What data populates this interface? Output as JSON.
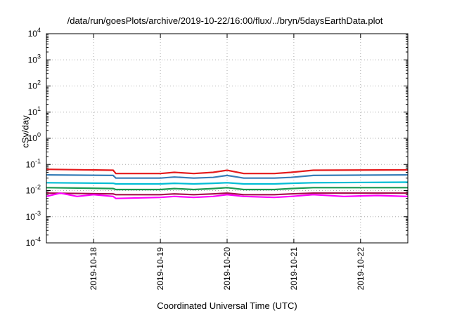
{
  "chart_data": {
    "type": "line",
    "title": "/data/run/goesPlots/archive/2019-10-22/16:00/flux/../bryn/5daysEarthData.plot",
    "xlabel": "Coordinated Universal Time (UTC)",
    "ylabel": "cSv/day",
    "yscale": "log",
    "ylim": [
      0.0001,
      10000
    ],
    "xlim": [
      "2019-10-17T07:00",
      "2019-10-22T17:00"
    ],
    "grid": true,
    "legend": "none",
    "x_ticks": [
      "2019-10-18",
      "2019-10-19",
      "2019-10-20",
      "2019-10-21",
      "2019-10-22"
    ],
    "y_ticks": [
      {
        "base": "10",
        "exp": "-4",
        "value": 0.0001
      },
      {
        "base": "10",
        "exp": "-3",
        "value": 0.001
      },
      {
        "base": "10",
        "exp": "-2",
        "value": 0.01
      },
      {
        "base": "10",
        "exp": "-1",
        "value": 0.1
      },
      {
        "base": "10",
        "exp": "0",
        "value": 1
      },
      {
        "base": "10",
        "exp": "1",
        "value": 10
      },
      {
        "base": "10",
        "exp": "2",
        "value": 100
      },
      {
        "base": "10",
        "exp": "3",
        "value": 1000
      },
      {
        "base": "10",
        "exp": "4",
        "value": 10000
      }
    ],
    "series": [
      {
        "color": "#e41a1c",
        "x": [
          "2019-10-17T07:00",
          "2019-10-18T07:00",
          "2019-10-18T08:00",
          "2019-10-19T00:00",
          "2019-10-19T05:00",
          "2019-10-19T12:00",
          "2019-10-19T19:00",
          "2019-10-20T00:00",
          "2019-10-20T06:00",
          "2019-10-20T17:00",
          "2019-10-20T23:00",
          "2019-10-21T07:00",
          "2019-10-22T17:00"
        ],
        "y": [
          0.065,
          0.06,
          0.045,
          0.045,
          0.05,
          0.045,
          0.05,
          0.06,
          0.045,
          0.045,
          0.05,
          0.06,
          0.062
        ]
      },
      {
        "color": "#377eb8",
        "x": [
          "2019-10-17T07:00",
          "2019-10-18T07:00",
          "2019-10-18T08:00",
          "2019-10-19T00:00",
          "2019-10-19T05:00",
          "2019-10-19T12:00",
          "2019-10-19T19:00",
          "2019-10-20T00:00",
          "2019-10-20T06:00",
          "2019-10-20T17:00",
          "2019-10-20T23:00",
          "2019-10-21T07:00",
          "2019-10-22T17:00"
        ],
        "y": [
          0.04,
          0.038,
          0.03,
          0.03,
          0.033,
          0.03,
          0.032,
          0.038,
          0.03,
          0.03,
          0.032,
          0.038,
          0.04
        ]
      },
      {
        "color": "#1a9850",
        "x": [
          "2019-10-17T07:00",
          "2019-10-18T07:00",
          "2019-10-18T08:00",
          "2019-10-19T00:00",
          "2019-10-19T05:00",
          "2019-10-19T12:00",
          "2019-10-19T19:00",
          "2019-10-20T00:00",
          "2019-10-20T06:00",
          "2019-10-20T17:00",
          "2019-10-20T23:00",
          "2019-10-21T07:00",
          "2019-10-22T17:00"
        ],
        "y": [
          0.013,
          0.012,
          0.011,
          0.011,
          0.012,
          0.011,
          0.012,
          0.013,
          0.011,
          0.011,
          0.012,
          0.013,
          0.013
        ]
      },
      {
        "color": "#00bcd4",
        "x": [
          "2019-10-17T07:00",
          "2019-10-18T07:00",
          "2019-10-18T08:00",
          "2019-10-19T00:00",
          "2019-10-19T05:00",
          "2019-10-19T12:00",
          "2019-10-19T19:00",
          "2019-10-20T00:00",
          "2019-10-20T06:00",
          "2019-10-20T17:00",
          "2019-10-20T23:00",
          "2019-10-21T07:00",
          "2019-10-22T17:00"
        ],
        "y": [
          0.02,
          0.019,
          0.018,
          0.018,
          0.019,
          0.018,
          0.019,
          0.02,
          0.018,
          0.018,
          0.019,
          0.02,
          0.021
        ]
      },
      {
        "color": "#a50f4b",
        "x": [
          "2019-10-17T07:00",
          "2019-10-18T07:00",
          "2019-10-18T08:00",
          "2019-10-19T00:00",
          "2019-10-19T05:00",
          "2019-10-19T12:00",
          "2019-10-19T19:00",
          "2019-10-20T00:00",
          "2019-10-20T06:00",
          "2019-10-20T17:00",
          "2019-10-20T23:00",
          "2019-10-21T07:00",
          "2019-10-22T17:00"
        ],
        "y": [
          0.008,
          0.0075,
          0.007,
          0.007,
          0.0075,
          0.007,
          0.0075,
          0.008,
          0.007,
          0.007,
          0.0075,
          0.008,
          0.008
        ]
      },
      {
        "color": "#ff00ff",
        "x": [
          "2019-10-17T07:00",
          "2019-10-17T12:00",
          "2019-10-17T18:00",
          "2019-10-18T00:00",
          "2019-10-18T07:00",
          "2019-10-18T08:00",
          "2019-10-19T00:00",
          "2019-10-19T05:00",
          "2019-10-19T12:00",
          "2019-10-19T19:00",
          "2019-10-20T00:00",
          "2019-10-20T06:00",
          "2019-10-20T17:00",
          "2019-10-20T23:00",
          "2019-10-21T07:00",
          "2019-10-21T18:00",
          "2019-10-22T06:00",
          "2019-10-22T17:00"
        ],
        "y": [
          0.006,
          0.008,
          0.006,
          0.007,
          0.006,
          0.005,
          0.0055,
          0.006,
          0.0055,
          0.006,
          0.007,
          0.006,
          0.0055,
          0.006,
          0.007,
          0.006,
          0.0065,
          0.006
        ]
      }
    ]
  }
}
